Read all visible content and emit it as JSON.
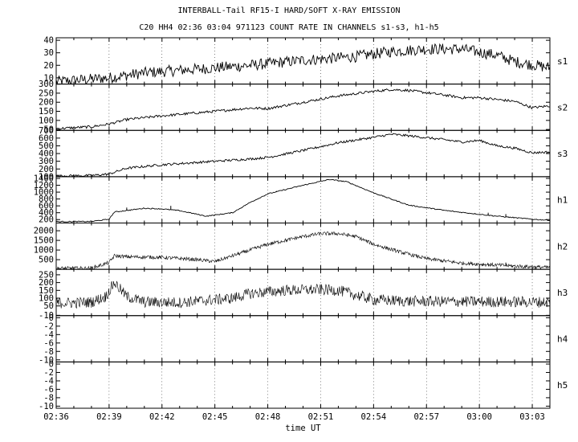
{
  "header": {
    "title": "INTERBALL-Tail RF15-I HARD/SOFT X-RAY EMISSION",
    "subtitle": "C20 HH4 02:36 03:04 971123  COUNT RATE IN CHANNELS s1-s3, h1-h5"
  },
  "chart_data": {
    "type": "line",
    "title": "INTERBALL-Tail RF15-I HARD/SOFT X-RAY EMISSION",
    "subtitle": "C20 HH4 02:36 03:04 971123  COUNT RATE IN CHANNELS s1-s3, h1-h5",
    "xlabel": "time UT",
    "x_ticks": [
      "02:36",
      "02:39",
      "02:42",
      "02:45",
      "02:48",
      "02:51",
      "02:54",
      "02:57",
      "03:00",
      "03:03"
    ],
    "x_range_minutes": [
      0,
      28
    ],
    "grid": "vertical dashed at each x tick",
    "panels": [
      {
        "name": "s1",
        "ylim": [
          5,
          42
        ],
        "yticks": [
          10,
          20,
          30,
          40
        ],
        "profile": [
          [
            0,
            7
          ],
          [
            2,
            9
          ],
          [
            3,
            10
          ],
          [
            5,
            14
          ],
          [
            8,
            17
          ],
          [
            11,
            20
          ],
          [
            14,
            24
          ],
          [
            17,
            27
          ],
          [
            19,
            31
          ],
          [
            21,
            33
          ],
          [
            23,
            33
          ],
          [
            25,
            28
          ],
          [
            26,
            23
          ],
          [
            28,
            18
          ]
        ],
        "noise": 4.5,
        "spikes": []
      },
      {
        "name": "s2",
        "ylim": [
          45,
          300
        ],
        "yticks": [
          50,
          100,
          150,
          200,
          250,
          300
        ],
        "profile": [
          [
            0,
            55
          ],
          [
            2,
            65
          ],
          [
            3,
            80
          ],
          [
            4,
            105
          ],
          [
            6,
            125
          ],
          [
            9,
            150
          ],
          [
            11,
            168
          ],
          [
            12,
            165
          ],
          [
            14,
            200
          ],
          [
            16,
            235
          ],
          [
            18,
            260
          ],
          [
            19,
            270
          ],
          [
            20,
            265
          ],
          [
            22,
            240
          ],
          [
            23,
            225
          ],
          [
            24,
            225
          ],
          [
            25,
            215
          ],
          [
            26,
            205
          ],
          [
            27,
            170
          ],
          [
            28,
            180
          ]
        ],
        "noise": 7,
        "spikes": []
      },
      {
        "name": "s3",
        "ylim": [
          100,
          700
        ],
        "yticks": [
          100,
          200,
          300,
          400,
          500,
          600,
          700
        ],
        "profile": [
          [
            0,
            110
          ],
          [
            2,
            115
          ],
          [
            3,
            135
          ],
          [
            4,
            210
          ],
          [
            6,
            255
          ],
          [
            9,
            300
          ],
          [
            11,
            330
          ],
          [
            12,
            350
          ],
          [
            14,
            440
          ],
          [
            16,
            540
          ],
          [
            18,
            610
          ],
          [
            19,
            650
          ],
          [
            20,
            630
          ],
          [
            22,
            580
          ],
          [
            23,
            550
          ],
          [
            24,
            570
          ],
          [
            25,
            500
          ],
          [
            26,
            470
          ],
          [
            27,
            410
          ],
          [
            28,
            420
          ]
        ],
        "noise": 15,
        "spikes": []
      },
      {
        "name": "h1",
        "ylim": [
          100,
          1450
        ],
        "yticks": [
          200,
          400,
          600,
          800,
          1000,
          1200,
          1400
        ],
        "profile": [
          [
            0,
            140
          ],
          [
            2,
            145
          ],
          [
            3,
            210
          ],
          [
            3.3,
            420
          ],
          [
            5,
            530
          ],
          [
            6,
            510
          ],
          [
            7,
            460
          ],
          [
            8.5,
            300
          ],
          [
            10,
            400
          ],
          [
            11,
            700
          ],
          [
            12,
            950
          ],
          [
            14,
            1200
          ],
          [
            15.5,
            1370
          ],
          [
            16.5,
            1300
          ],
          [
            18,
            980
          ],
          [
            20,
            620
          ],
          [
            22,
            470
          ],
          [
            23,
            410
          ],
          [
            25,
            300
          ],
          [
            27,
            210
          ],
          [
            28,
            180
          ]
        ],
        "noise": 14,
        "spikes": [
          [
            4,
            550
          ],
          [
            6.5,
            600
          ],
          [
            12.5,
            1000
          ],
          [
            19,
            780
          ],
          [
            24.5,
            400
          ],
          [
            25.5,
            360
          ]
        ]
      },
      {
        "name": "h2",
        "ylim": [
          0,
          2400
        ],
        "yticks": [
          500,
          1000,
          1500,
          2000
        ],
        "profile": [
          [
            0,
            50
          ],
          [
            2,
            60
          ],
          [
            3,
            350
          ],
          [
            3.3,
            700
          ],
          [
            4,
            650
          ],
          [
            6,
            620
          ],
          [
            8,
            500
          ],
          [
            9,
            400
          ],
          [
            10,
            700
          ],
          [
            12,
            1300
          ],
          [
            14,
            1700
          ],
          [
            15,
            1850
          ],
          [
            16,
            1850
          ],
          [
            17,
            1700
          ],
          [
            18,
            1300
          ],
          [
            19.5,
            900
          ],
          [
            21,
            550
          ],
          [
            23,
            320
          ],
          [
            25,
            220
          ],
          [
            27,
            120
          ],
          [
            28,
            100
          ]
        ],
        "noise": 95,
        "spikes": [
          [
            19.2,
            1050
          ],
          [
            24.5,
            300
          ],
          [
            25.5,
            350
          ]
        ]
      },
      {
        "name": "h3",
        "ylim": [
          -12,
          285
        ],
        "yticks": [
          -10,
          50,
          100,
          150,
          200,
          250
        ],
        "profile": [
          [
            0,
            70
          ],
          [
            1,
            70
          ],
          [
            2,
            75
          ],
          [
            2.8,
            110
          ],
          [
            3.3,
            200
          ],
          [
            4,
            110
          ],
          [
            5,
            75
          ],
          [
            7,
            72
          ],
          [
            9,
            90
          ],
          [
            10,
            100
          ],
          [
            11,
            130
          ],
          [
            13,
            150
          ],
          [
            15,
            155
          ],
          [
            16,
            150
          ],
          [
            17,
            120
          ],
          [
            18,
            90
          ],
          [
            20,
            80
          ],
          [
            28,
            75
          ]
        ],
        "noise": 36,
        "spikes": []
      },
      {
        "name": "h4",
        "ylim": [
          -10.5,
          0.5
        ],
        "yticks": [
          -10,
          -8,
          -6,
          -4,
          -2,
          0
        ],
        "empty": true
      },
      {
        "name": "h5",
        "ylim": [
          -10.5,
          0.5
        ],
        "yticks": [
          -10,
          -8,
          -6,
          -4,
          -2,
          0
        ],
        "empty": true
      }
    ]
  }
}
